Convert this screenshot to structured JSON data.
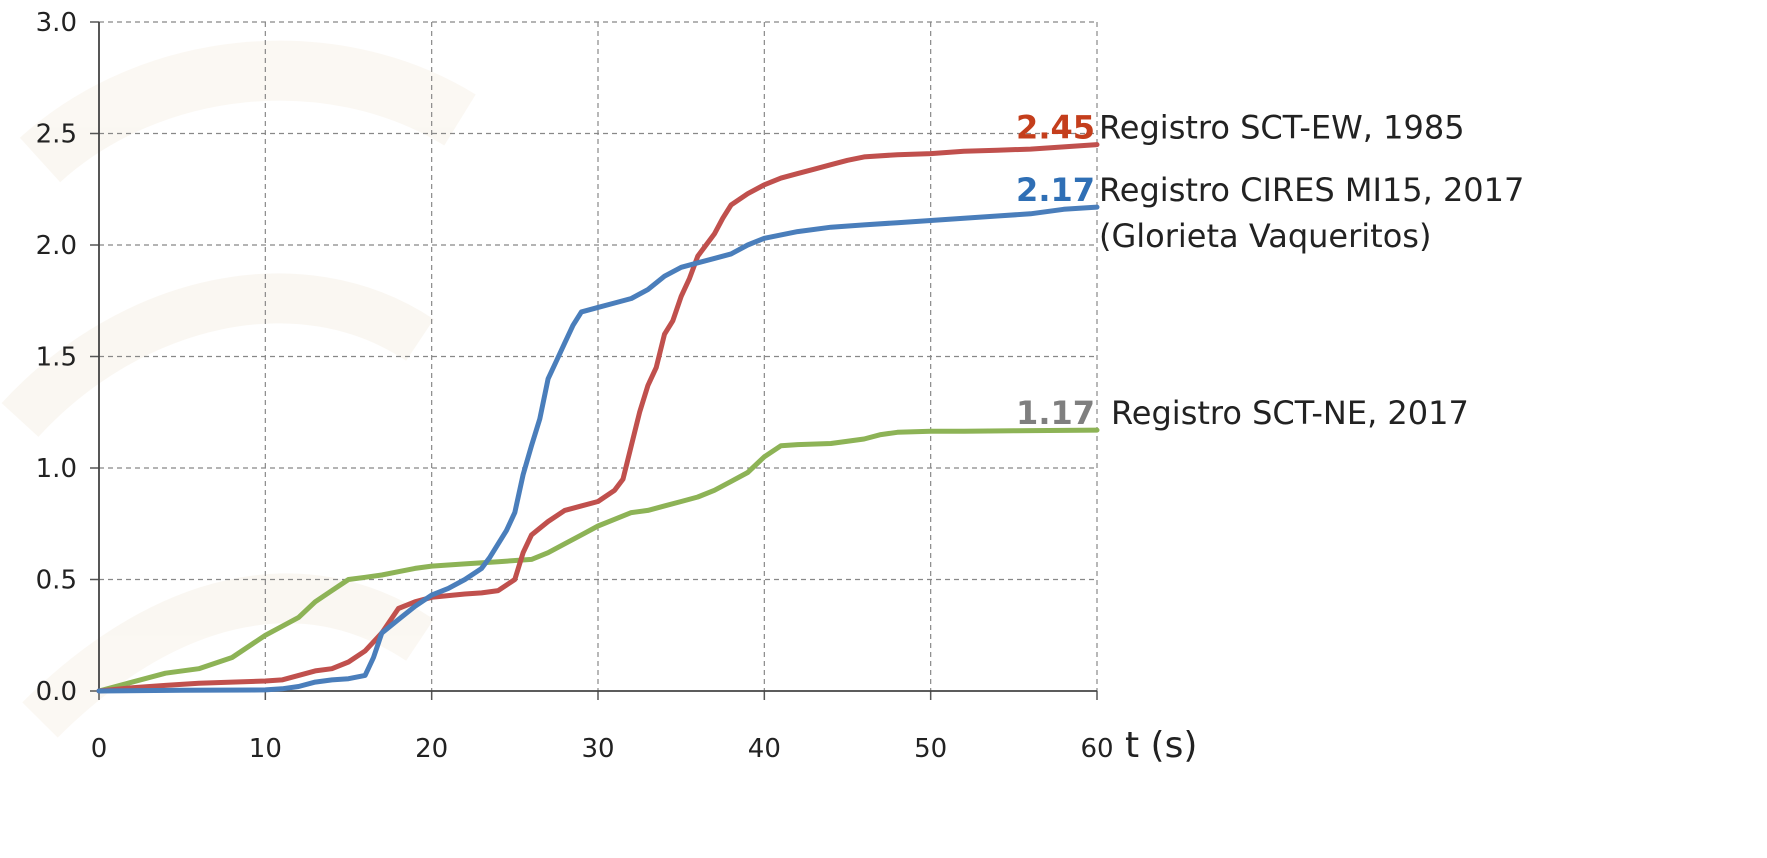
{
  "chart_data": {
    "type": "line",
    "title": "",
    "xlabel": "t (s)",
    "ylabel": "",
    "xlim": [
      0,
      60
    ],
    "ylim": [
      0,
      3.0
    ],
    "xticks": [
      0,
      10,
      20,
      30,
      40,
      50,
      60
    ],
    "yticks": [
      0,
      0.5,
      1.0,
      1.5,
      2.0,
      2.5,
      3.0
    ],
    "xtick_labels": [
      "0",
      "10",
      "20",
      "30",
      "40",
      "50",
      "60"
    ],
    "ytick_labels": [
      "0.0",
      "0.5",
      "1.0",
      "1.5",
      "2.0",
      "2.5",
      "3.0"
    ],
    "grid": true,
    "series": [
      {
        "name": "Registro SCT-EW, 1985",
        "color": "#c0504d",
        "end_value_label": "2.45",
        "end_value_color": "#c43e1c",
        "points": [
          [
            0,
            0
          ],
          [
            2,
            0.015
          ],
          [
            4,
            0.025
          ],
          [
            6,
            0.035
          ],
          [
            8,
            0.04
          ],
          [
            10,
            0.045
          ],
          [
            11,
            0.05
          ],
          [
            12,
            0.07
          ],
          [
            13,
            0.09
          ],
          [
            14,
            0.1
          ],
          [
            15,
            0.13
          ],
          [
            16,
            0.18
          ],
          [
            17,
            0.26
          ],
          [
            18,
            0.37
          ],
          [
            19,
            0.4
          ],
          [
            20,
            0.42
          ],
          [
            22,
            0.435
          ],
          [
            23,
            0.44
          ],
          [
            24,
            0.45
          ],
          [
            25,
            0.5
          ],
          [
            25.5,
            0.62
          ],
          [
            26,
            0.7
          ],
          [
            27,
            0.76
          ],
          [
            28,
            0.81
          ],
          [
            29,
            0.83
          ],
          [
            30,
            0.85
          ],
          [
            31,
            0.9
          ],
          [
            31.5,
            0.95
          ],
          [
            32,
            1.1
          ],
          [
            32.5,
            1.25
          ],
          [
            33,
            1.37
          ],
          [
            33.5,
            1.45
          ],
          [
            34,
            1.6
          ],
          [
            34.5,
            1.66
          ],
          [
            35,
            1.77
          ],
          [
            35.5,
            1.85
          ],
          [
            36,
            1.95
          ],
          [
            37,
            2.05
          ],
          [
            37.5,
            2.12
          ],
          [
            38,
            2.18
          ],
          [
            39,
            2.23
          ],
          [
            40,
            2.27
          ],
          [
            41,
            2.3
          ],
          [
            42,
            2.32
          ],
          [
            43,
            2.34
          ],
          [
            44,
            2.36
          ],
          [
            45,
            2.38
          ],
          [
            46,
            2.395
          ],
          [
            48,
            2.405
          ],
          [
            50,
            2.41
          ],
          [
            52,
            2.42
          ],
          [
            54,
            2.425
          ],
          [
            56,
            2.43
          ],
          [
            58,
            2.44
          ],
          [
            60,
            2.45
          ]
        ]
      },
      {
        "name": "Registro CIRES MI15, 2017",
        "name_line2": "(Glorieta Vaquerito​s)",
        "color": "#4a7ebb",
        "end_value_label": "2.17",
        "end_value_color": "#2f6fb5",
        "points": [
          [
            0,
            0
          ],
          [
            5,
            0.003
          ],
          [
            10,
            0.005
          ],
          [
            11,
            0.01
          ],
          [
            12,
            0.02
          ],
          [
            13,
            0.04
          ],
          [
            14,
            0.05
          ],
          [
            15,
            0.055
          ],
          [
            16,
            0.07
          ],
          [
            16.5,
            0.15
          ],
          [
            17,
            0.26
          ],
          [
            18,
            0.32
          ],
          [
            19,
            0.38
          ],
          [
            20,
            0.43
          ],
          [
            21,
            0.46
          ],
          [
            22,
            0.5
          ],
          [
            23,
            0.55
          ],
          [
            23.5,
            0.6
          ],
          [
            24,
            0.66
          ],
          [
            24.5,
            0.72
          ],
          [
            25,
            0.8
          ],
          [
            25.5,
            0.97
          ],
          [
            26,
            1.1
          ],
          [
            26.5,
            1.22
          ],
          [
            27,
            1.4
          ],
          [
            27.5,
            1.48
          ],
          [
            28,
            1.56
          ],
          [
            28.5,
            1.64
          ],
          [
            29,
            1.7
          ],
          [
            30,
            1.72
          ],
          [
            31,
            1.74
          ],
          [
            32,
            1.76
          ],
          [
            33,
            1.8
          ],
          [
            34,
            1.86
          ],
          [
            35,
            1.9
          ],
          [
            36,
            1.92
          ],
          [
            37,
            1.94
          ],
          [
            38,
            1.96
          ],
          [
            39,
            2.0
          ],
          [
            40,
            2.03
          ],
          [
            42,
            2.06
          ],
          [
            44,
            2.08
          ],
          [
            46,
            2.09
          ],
          [
            48,
            2.1
          ],
          [
            50,
            2.11
          ],
          [
            52,
            2.12
          ],
          [
            54,
            2.13
          ],
          [
            56,
            2.14
          ],
          [
            58,
            2.16
          ],
          [
            60,
            2.17
          ]
        ]
      },
      {
        "name": "Registro SCT-NE, 2017",
        "color": "#8db356",
        "end_value_label": "1.17",
        "end_value_color": "#7f7f7f",
        "points": [
          [
            0,
            0
          ],
          [
            2,
            0.04
          ],
          [
            4,
            0.08
          ],
          [
            6,
            0.1
          ],
          [
            8,
            0.15
          ],
          [
            10,
            0.25
          ],
          [
            12,
            0.33
          ],
          [
            13,
            0.4
          ],
          [
            14,
            0.45
          ],
          [
            15,
            0.5
          ],
          [
            16,
            0.51
          ],
          [
            17,
            0.52
          ],
          [
            18,
            0.535
          ],
          [
            19,
            0.55
          ],
          [
            20,
            0.56
          ],
          [
            22,
            0.57
          ],
          [
            24,
            0.58
          ],
          [
            26,
            0.59
          ],
          [
            27,
            0.62
          ],
          [
            28,
            0.66
          ],
          [
            29,
            0.7
          ],
          [
            30,
            0.74
          ],
          [
            31,
            0.77
          ],
          [
            32,
            0.8
          ],
          [
            33,
            0.81
          ],
          [
            34,
            0.83
          ],
          [
            35,
            0.85
          ],
          [
            36,
            0.87
          ],
          [
            37,
            0.9
          ],
          [
            38,
            0.94
          ],
          [
            39,
            0.98
          ],
          [
            40,
            1.05
          ],
          [
            41,
            1.1
          ],
          [
            42,
            1.105
          ],
          [
            44,
            1.11
          ],
          [
            46,
            1.13
          ],
          [
            47,
            1.15
          ],
          [
            48,
            1.16
          ],
          [
            50,
            1.165
          ],
          [
            52,
            1.165
          ],
          [
            55,
            1.167
          ],
          [
            60,
            1.17
          ]
        ]
      }
    ]
  }
}
